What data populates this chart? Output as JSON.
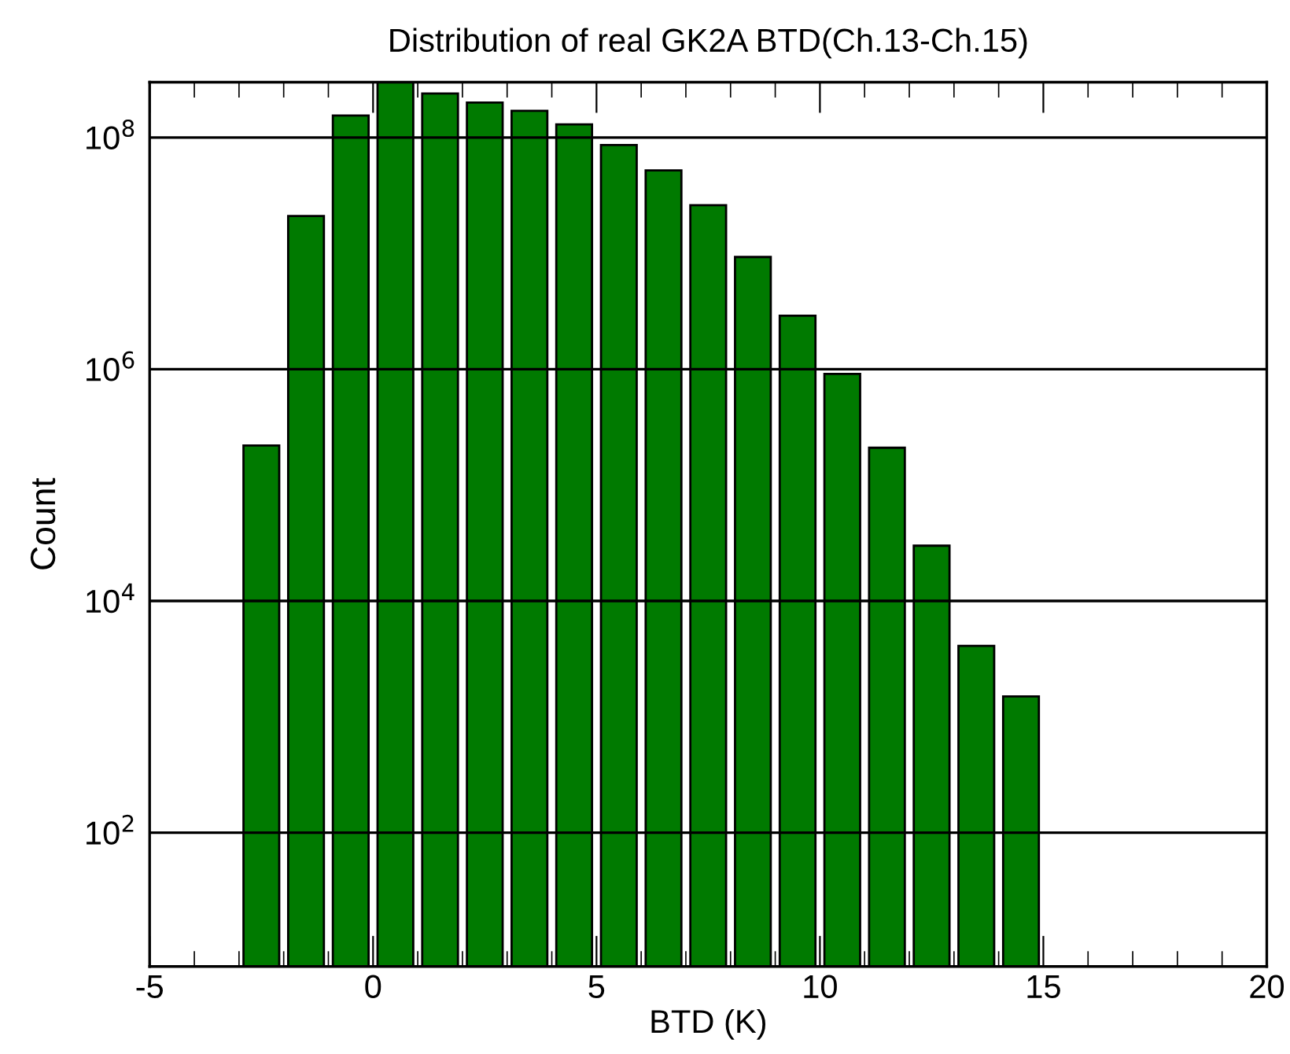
{
  "chart_data": {
    "type": "histogram",
    "title": "Distribution of real GK2A BTD(Ch.13-Ch.15)",
    "xlabel": "BTD (K)",
    "ylabel": "Count",
    "bins": [
      -3,
      -2,
      -1,
      0,
      1,
      2,
      3,
      4,
      5,
      6,
      7,
      8,
      9,
      10,
      11,
      12,
      13,
      14,
      15
    ],
    "values": [
      220000,
      21000000,
      155000000,
      300000000,
      240000000,
      200000000,
      170000000,
      130000000,
      86000000,
      52000000,
      26000000,
      9300000,
      2900000,
      910000,
      210000,
      30000,
      4100,
      1500
    ],
    "color": "#007a00",
    "log": "y",
    "grid": "y",
    "xlim": [
      -5,
      20
    ],
    "xticks": [
      -5,
      0,
      5,
      10,
      15,
      20
    ],
    "ylim": [
      7,
      300000000
    ],
    "yticks": [
      {
        "value": 100,
        "label": "10$^{2}$"
      },
      {
        "value": 10000,
        "label": "10$^{4}$"
      },
      {
        "value": 1000000,
        "label": "10$^{6}$"
      },
      {
        "value": 100000000,
        "label": "10$^{8}$"
      }
    ]
  }
}
